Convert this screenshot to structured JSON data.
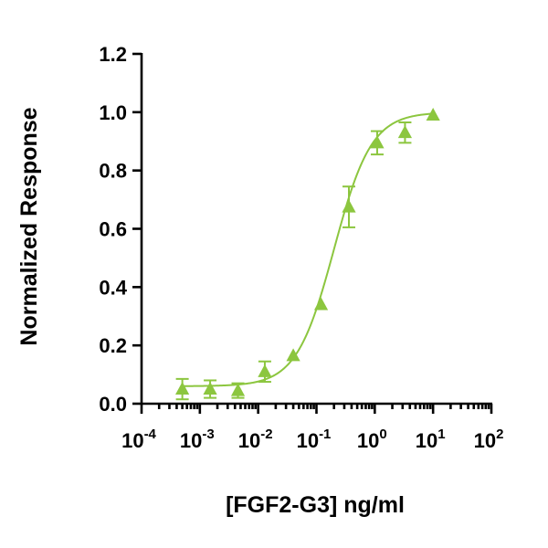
{
  "chart_data": {
    "type": "scatter",
    "title": "",
    "xlabel": "[FGF2-G3] ng/ml",
    "ylabel": "Normalized Response",
    "x_scale": "log",
    "xlim": [
      0.0001,
      100
    ],
    "ylim": [
      0,
      1.2
    ],
    "x_ticks": [
      {
        "value": 0.0001,
        "base": "10",
        "exp": "-4"
      },
      {
        "value": 0.001,
        "base": "10",
        "exp": "-3"
      },
      {
        "value": 0.01,
        "base": "10",
        "exp": "-2"
      },
      {
        "value": 0.1,
        "base": "10",
        "exp": "-1"
      },
      {
        "value": 1,
        "base": "10",
        "exp": "0"
      },
      {
        "value": 10,
        "base": "10",
        "exp": "1"
      },
      {
        "value": 100,
        "base": "10",
        "exp": "2"
      }
    ],
    "y_ticks": [
      {
        "value": 0.0,
        "label": "0.0"
      },
      {
        "value": 0.2,
        "label": "0.2"
      },
      {
        "value": 0.4,
        "label": "0.4"
      },
      {
        "value": 0.6,
        "label": "0.6"
      },
      {
        "value": 0.8,
        "label": "0.8"
      },
      {
        "value": 1.0,
        "label": "1.0"
      },
      {
        "value": 1.2,
        "label": "1.2"
      }
    ],
    "grid": false,
    "legend": "none",
    "color": "#8cc63f",
    "marker": "triangle",
    "series": [
      {
        "points": [
          {
            "x": 0.0005,
            "y": 0.05,
            "err": 0.035
          },
          {
            "x": 0.0015,
            "y": 0.05,
            "err": 0.03
          },
          {
            "x": 0.0045,
            "y": 0.045,
            "err": 0.025
          },
          {
            "x": 0.013,
            "y": 0.11,
            "err": 0.035
          },
          {
            "x": 0.04,
            "y": 0.165,
            "err": 0.0
          },
          {
            "x": 0.12,
            "y": 0.34,
            "err": 0.0
          },
          {
            "x": 0.36,
            "y": 0.675,
            "err": 0.07
          },
          {
            "x": 1.1,
            "y": 0.895,
            "err": 0.04
          },
          {
            "x": 3.3,
            "y": 0.93,
            "err": 0.035
          },
          {
            "x": 10,
            "y": 0.99,
            "err": 0.0
          }
        ],
        "fit": {
          "model": "4PL",
          "bottom": 0.06,
          "top": 1.0,
          "ec50": 0.2,
          "hill": 1.35
        }
      }
    ]
  }
}
